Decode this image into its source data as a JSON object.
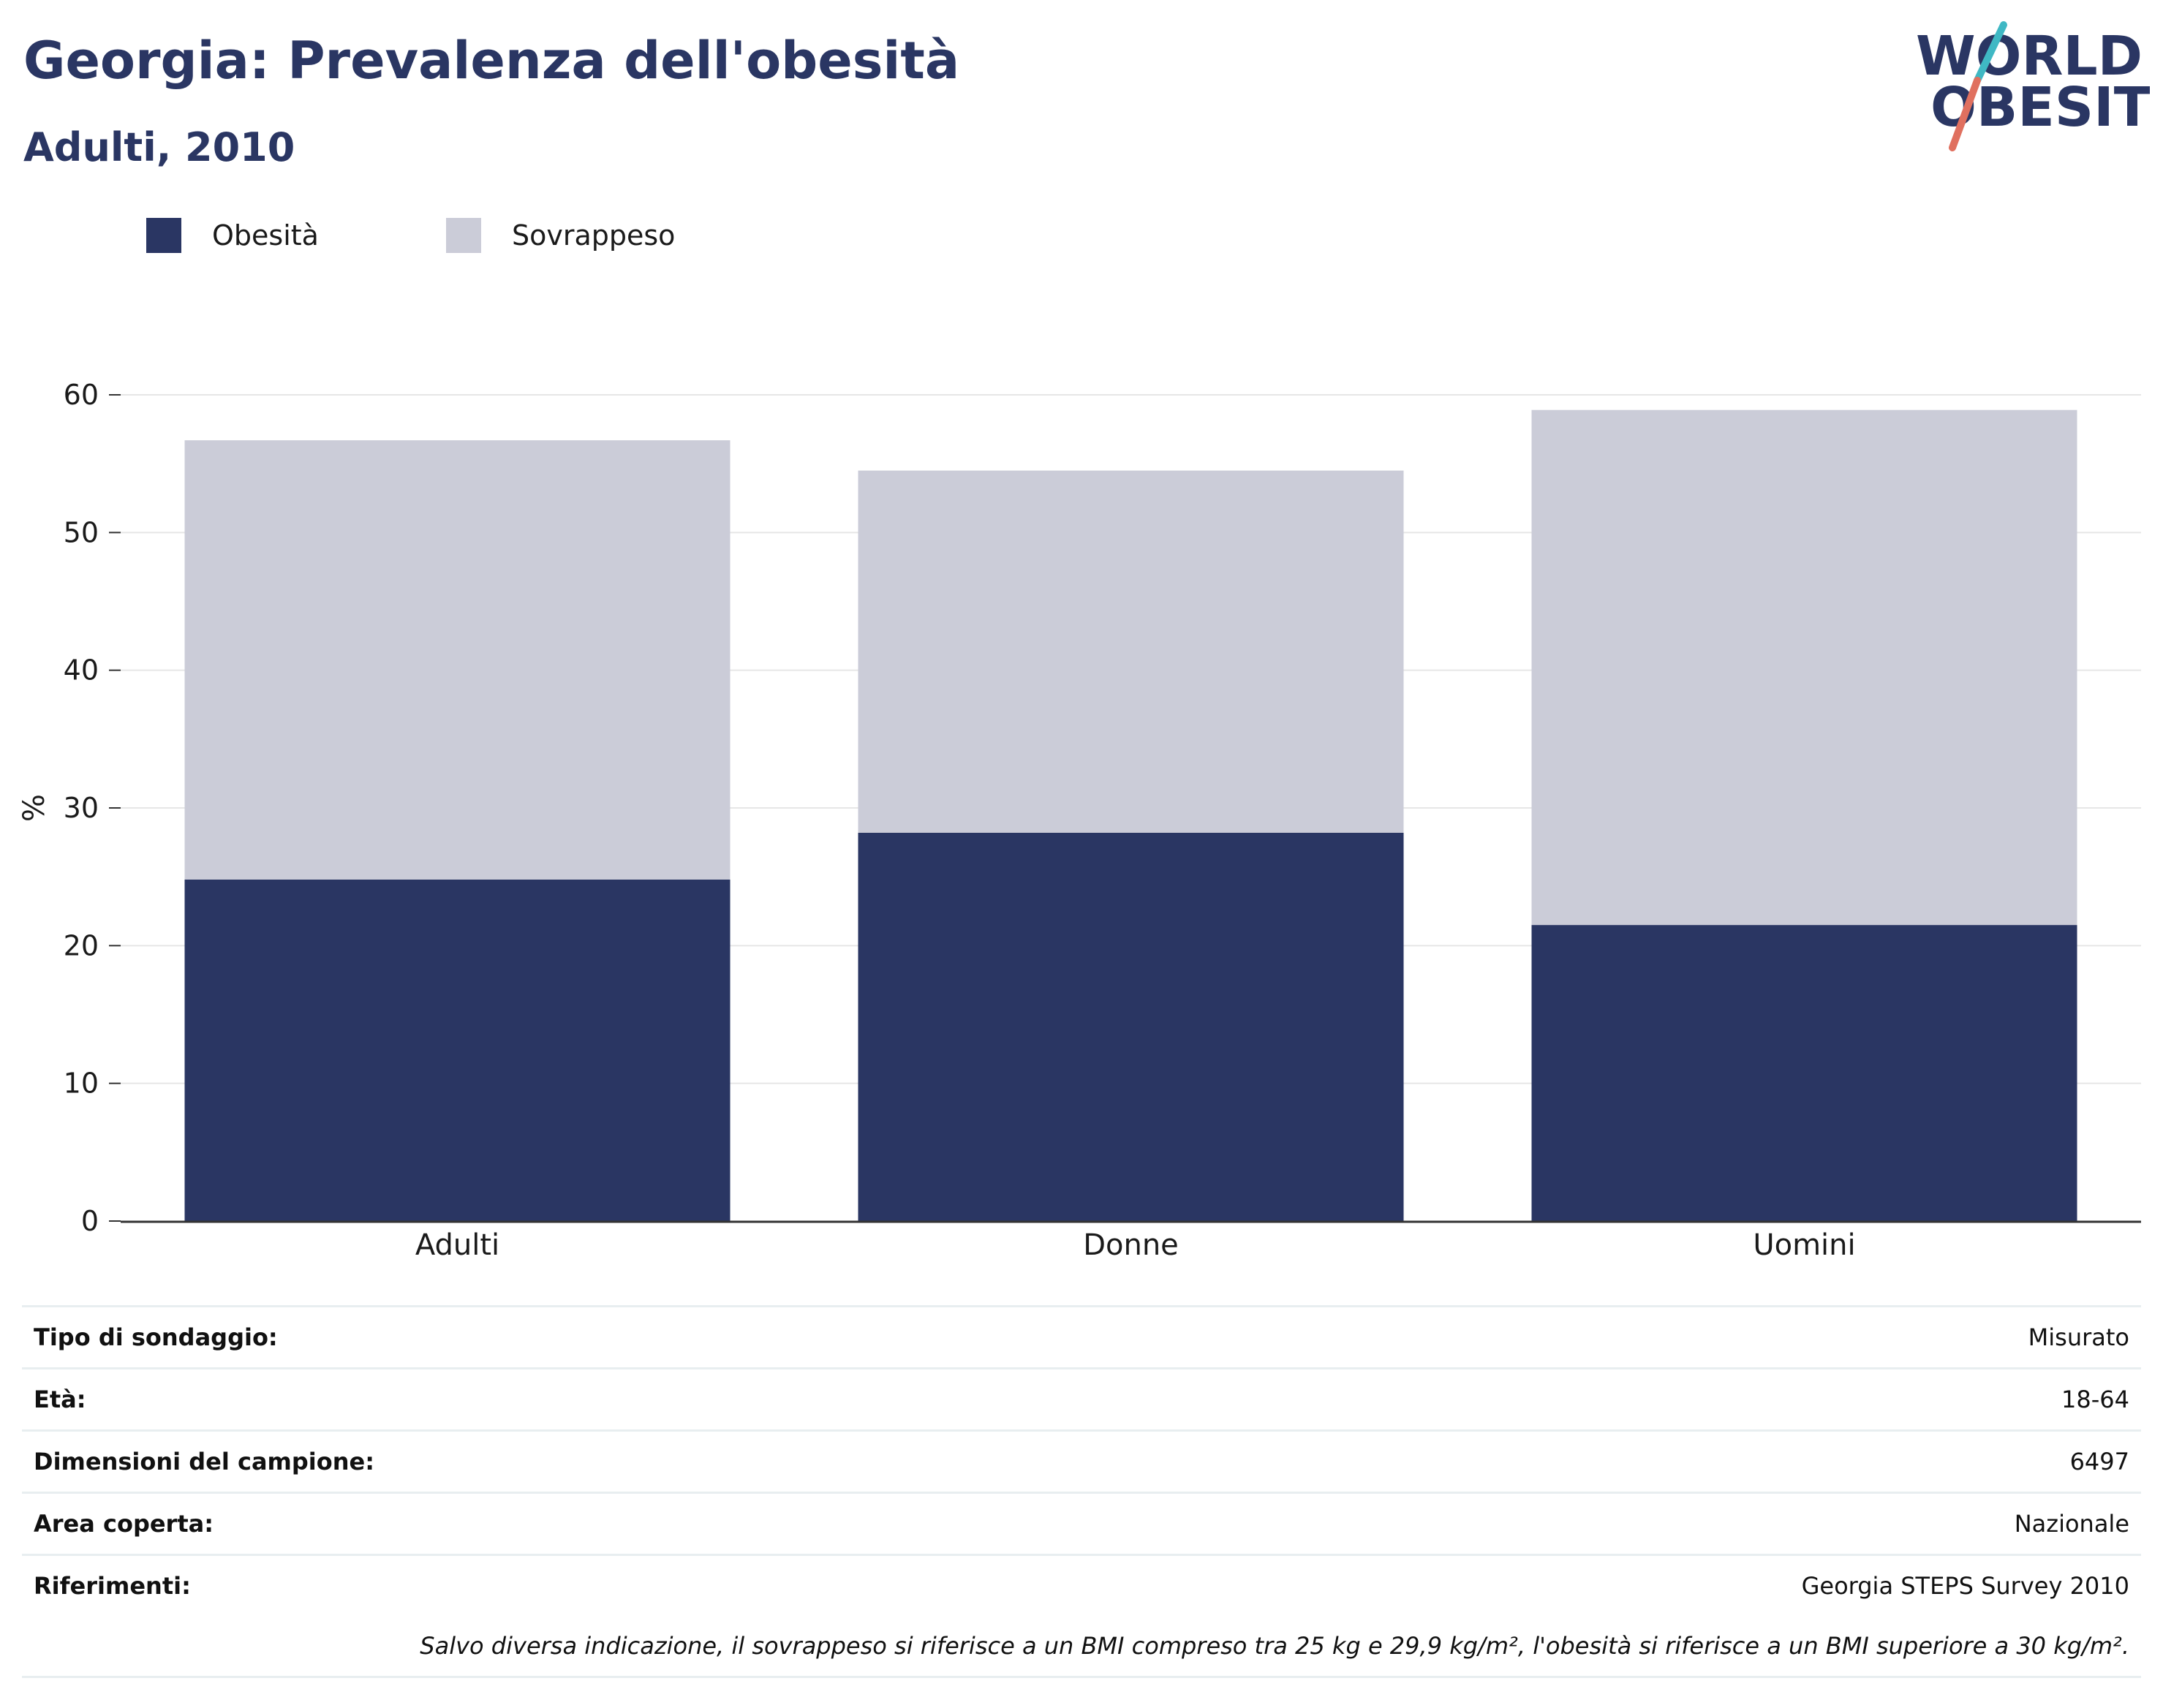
{
  "header": {
    "title": "Georgia: Prevalenza dell'obesità",
    "subtitle": "Adulti, 2010"
  },
  "logo": {
    "line1": "WORLD",
    "line2": "OBESITY"
  },
  "colors": {
    "obesity": "#2a3663",
    "overweight": "#cbccd8",
    "accent_teal": "#3fb8c4",
    "accent_coral": "#e0705f",
    "grid": "#e6e6e6"
  },
  "legend": [
    {
      "label": "Obesità",
      "color": "#2a3663"
    },
    {
      "label": "Sovrappeso",
      "color": "#cbccd8"
    }
  ],
  "chart_data": {
    "type": "bar",
    "stacked": true,
    "categories": [
      "Adulti",
      "Donne",
      "Uomini"
    ],
    "series": [
      {
        "name": "Obesità",
        "color": "#2a3663",
        "values": [
          24.8,
          28.2,
          21.5
        ]
      },
      {
        "name": "Sovrappeso",
        "color": "#cbccd8",
        "values": [
          31.9,
          26.3,
          37.4
        ]
      }
    ],
    "totals": [
      56.7,
      54.5,
      58.9
    ],
    "title": "",
    "xlabel": "",
    "ylabel": "%",
    "ylim": [
      0,
      60
    ],
    "yticks": [
      0,
      10,
      20,
      30,
      40,
      50,
      60
    ],
    "grid": true,
    "legend_position": "top-left"
  },
  "info": [
    {
      "label": "Tipo di sondaggio:",
      "value": "Misurato"
    },
    {
      "label": "Età:",
      "value": "18-64"
    },
    {
      "label": "Dimensioni del campione:",
      "value": "6497"
    },
    {
      "label": "Area coperta:",
      "value": "Nazionale"
    },
    {
      "label": "Riferimenti:",
      "value": "Georgia STEPS Survey 2010"
    }
  ],
  "footnote": "Salvo diversa indicazione, il sovrappeso si riferisce a un BMI compreso tra 25 kg e 29,9 kg/m², l'obesità si riferisce a un BMI superiore a 30 kg/m²."
}
